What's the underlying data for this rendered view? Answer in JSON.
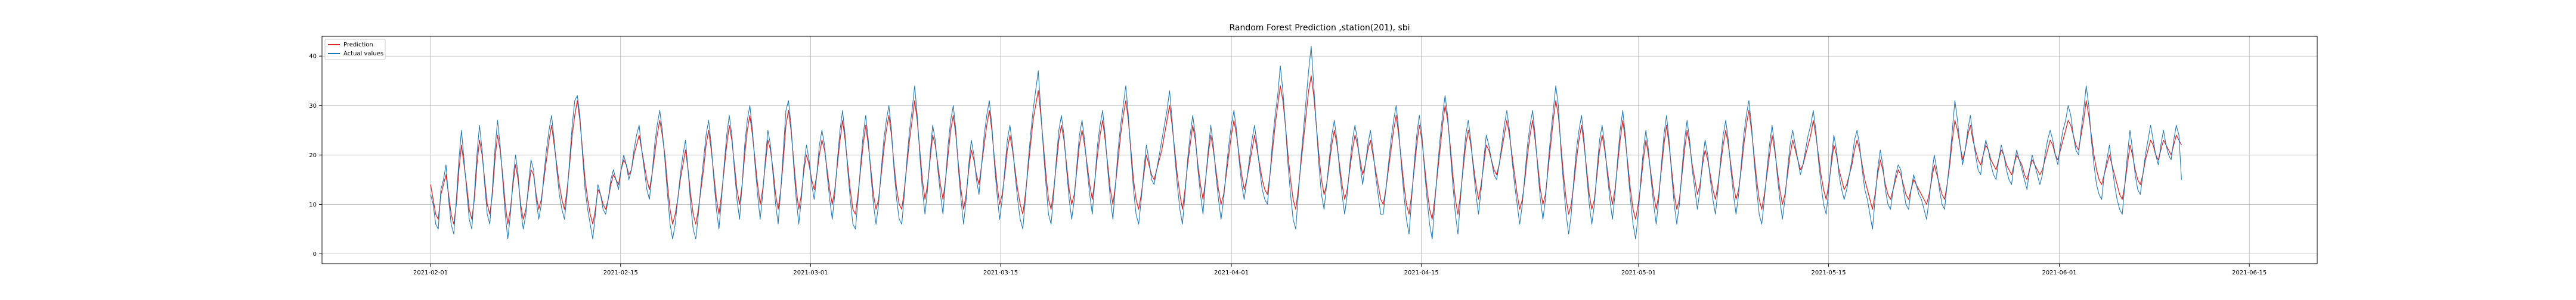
{
  "chart_data": {
    "type": "line",
    "title": "Random Forest Prediction ,station(201), sbi",
    "xlabel": "",
    "ylabel": "",
    "x_range": [
      "2021-01-24",
      "2021-06-20"
    ],
    "ylim": [
      -2,
      44
    ],
    "x_ticks": [
      "2021-02-01",
      "2021-02-15",
      "2021-03-01",
      "2021-03-15",
      "2021-04-01",
      "2021-04-15",
      "2021-05-01",
      "2021-05-15",
      "2021-06-01",
      "2021-06-15"
    ],
    "y_ticks": [
      0,
      10,
      20,
      30,
      40
    ],
    "grid": true,
    "legend_position": "top-left",
    "series_start": "2021-02-01",
    "series_end": "2021-06-10",
    "series": [
      {
        "name": "Prediction",
        "color": "#d62728",
        "sampling": "4h",
        "values": [
          14,
          11,
          8,
          7,
          12,
          14,
          16,
          12,
          8,
          6,
          10,
          17,
          22,
          18,
          14,
          9,
          7,
          11,
          18,
          23,
          20,
          15,
          10,
          8,
          12,
          19,
          24,
          21,
          16,
          10,
          6,
          9,
          14,
          18,
          15,
          10,
          7,
          9,
          13,
          17,
          16,
          12,
          9,
          11,
          15,
          19,
          23,
          26,
          22,
          18,
          14,
          11,
          9,
          13,
          18,
          24,
          28,
          31,
          27,
          21,
          15,
          11,
          8,
          6,
          9,
          13,
          12,
          10,
          9,
          11,
          14,
          16,
          15,
          14,
          17,
          19,
          18,
          16,
          17,
          20,
          22,
          24,
          21,
          18,
          15,
          13,
          16,
          20,
          24,
          27,
          24,
          20,
          14,
          9,
          6,
          8,
          11,
          15,
          18,
          21,
          17,
          12,
          8,
          6,
          9,
          13,
          17,
          22,
          25,
          21,
          16,
          11,
          8,
          12,
          17,
          22,
          26,
          23,
          18,
          13,
          10,
          14,
          20,
          25,
          28,
          24,
          19,
          14,
          10,
          13,
          18,
          23,
          21,
          17,
          12,
          9,
          13,
          19,
          26,
          29,
          25,
          19,
          13,
          9,
          12,
          17,
          20,
          18,
          15,
          13,
          16,
          20,
          23,
          21,
          17,
          13,
          10,
          13,
          18,
          23,
          27,
          23,
          18,
          13,
          9,
          8,
          12,
          17,
          22,
          26,
          22,
          17,
          12,
          9,
          11,
          16,
          21,
          25,
          28,
          24,
          18,
          13,
          10,
          9,
          13,
          18,
          23,
          27,
          31,
          27,
          21,
          15,
          11,
          14,
          19,
          24,
          22,
          18,
          14,
          11,
          15,
          20,
          25,
          28,
          24,
          18,
          13,
          9,
          12,
          17,
          21,
          19,
          16,
          14,
          18,
          22,
          26,
          29,
          25,
          19,
          14,
          10,
          12,
          16,
          21,
          24,
          21,
          17,
          13,
          10,
          8,
          12,
          17,
          22,
          27,
          30,
          33,
          28,
          22,
          16,
          11,
          9,
          13,
          18,
          23,
          26,
          23,
          18,
          13,
          10,
          12,
          17,
          22,
          25,
          22,
          18,
          14,
          11,
          15,
          20,
          24,
          27,
          23,
          18,
          13,
          10,
          14,
          19,
          24,
          28,
          31,
          27,
          21,
          15,
          11,
          9,
          12,
          16,
          20,
          18,
          16,
          15,
          17,
          19,
          21,
          24,
          27,
          30,
          26,
          21,
          16,
          12,
          9,
          13,
          18,
          22,
          26,
          23,
          18,
          14,
          11,
          15,
          20,
          24,
          21,
          17,
          13,
          10,
          12,
          16,
          20,
          24,
          27,
          24,
          20,
          16,
          13,
          15,
          18,
          21,
          24,
          21,
          18,
          15,
          13,
          12,
          16,
          21,
          26,
          30,
          34,
          31,
          26,
          20,
          15,
          11,
          9,
          13,
          18,
          23,
          28,
          33,
          36,
          32,
          26,
          20,
          15,
          12,
          14,
          18,
          22,
          25,
          22,
          18,
          14,
          11,
          13,
          17,
          21,
          24,
          22,
          19,
          16,
          18,
          21,
          23,
          20,
          17,
          14,
          11,
          10,
          13,
          17,
          21,
          25,
          28,
          24,
          19,
          14,
          10,
          8,
          12,
          17,
          22,
          26,
          23,
          18,
          13,
          9,
          7,
          11,
          16,
          21,
          26,
          30,
          27,
          22,
          16,
          11,
          8,
          12,
          17,
          22,
          25,
          22,
          18,
          14,
          11,
          14,
          18,
          22,
          21,
          19,
          17,
          16,
          18,
          21,
          24,
          27,
          24,
          20,
          16,
          12,
          9,
          11,
          15,
          20,
          24,
          27,
          23,
          18,
          13,
          10,
          12,
          17,
          22,
          27,
          31,
          28,
          22,
          16,
          11,
          8,
          10,
          14,
          19,
          23,
          26,
          22,
          17,
          12,
          9,
          11,
          16,
          21,
          24,
          21,
          17,
          13,
          10,
          13,
          18,
          23,
          27,
          23,
          18,
          13,
          9,
          7,
          10,
          14,
          19,
          23,
          20,
          16,
          12,
          9,
          12,
          17,
          22,
          26,
          22,
          17,
          12,
          9,
          11,
          16,
          21,
          25,
          22,
          18,
          15,
          12,
          14,
          18,
          21,
          19,
          16,
          13,
          11,
          14,
          18,
          22,
          25,
          22,
          18,
          14,
          11,
          13,
          17,
          22,
          26,
          29,
          25,
          20,
          15,
          11,
          9,
          12,
          16,
          20,
          24,
          21,
          17,
          13,
          10,
          12,
          16,
          20,
          23,
          21,
          19,
          17,
          18,
          20,
          22,
          24,
          27,
          24,
          20,
          16,
          13,
          11,
          14,
          18,
          22,
          20,
          17,
          15,
          13,
          14,
          16,
          18,
          21,
          23,
          21,
          18,
          15,
          13,
          11,
          9,
          12,
          16,
          19,
          17,
          14,
          12,
          11,
          13,
          15,
          17,
          16,
          14,
          12,
          11,
          13,
          15,
          14,
          13,
          12,
          11,
          10,
          12,
          15,
          18,
          16,
          14,
          12,
          11,
          14,
          18,
          23,
          27,
          25,
          22,
          19,
          21,
          24,
          26,
          23,
          21,
          19,
          18,
          20,
          22,
          21,
          19,
          18,
          17,
          19,
          21,
          20,
          18,
          17,
          16,
          18,
          20,
          19,
          18,
          16,
          15,
          17,
          19,
          18,
          17,
          16,
          17,
          19,
          21,
          23,
          22,
          20,
          19,
          21,
          23,
          25,
          27,
          26,
          24,
          22,
          21,
          24,
          27,
          31,
          28,
          24,
          20,
          17,
          15,
          14,
          16,
          18,
          20,
          18,
          16,
          14,
          12,
          11,
          14,
          18,
          22,
          20,
          17,
          15,
          14,
          16,
          19,
          21,
          23,
          22,
          20,
          19,
          21,
          23,
          22,
          21,
          20,
          22,
          24,
          23,
          22
        ]
      },
      {
        "name": "Actual values",
        "color": "#1f77b4",
        "sampling": "4h",
        "values": [
          12,
          10,
          6,
          5,
          13,
          15,
          18,
          11,
          6,
          4,
          11,
          19,
          25,
          19,
          13,
          7,
          5,
          12,
          20,
          26,
          21,
          14,
          8,
          6,
          13,
          21,
          27,
          22,
          15,
          8,
          3,
          8,
          15,
          20,
          16,
          9,
          5,
          8,
          14,
          19,
          17,
          11,
          7,
          10,
          16,
          21,
          25,
          28,
          23,
          17,
          12,
          9,
          7,
          12,
          19,
          26,
          31,
          32,
          28,
          20,
          13,
          9,
          6,
          3,
          8,
          14,
          12,
          9,
          8,
          11,
          15,
          17,
          15,
          13,
          17,
          20,
          18,
          15,
          17,
          21,
          24,
          26,
          21,
          17,
          13,
          11,
          16,
          22,
          26,
          29,
          25,
          19,
          12,
          6,
          3,
          6,
          11,
          16,
          20,
          23,
          17,
          10,
          5,
          3,
          8,
          14,
          19,
          24,
          27,
          22,
          15,
          9,
          5,
          11,
          18,
          24,
          28,
          24,
          17,
          11,
          7,
          14,
          22,
          27,
          30,
          25,
          18,
          12,
          7,
          12,
          19,
          25,
          22,
          16,
          10,
          6,
          13,
          21,
          29,
          31,
          26,
          18,
          11,
          6,
          11,
          18,
          22,
          19,
          14,
          11,
          16,
          22,
          25,
          22,
          16,
          11,
          7,
          12,
          19,
          25,
          29,
          24,
          17,
          11,
          6,
          5,
          11,
          18,
          24,
          28,
          23,
          16,
          10,
          6,
          10,
          17,
          23,
          27,
          30,
          25,
          17,
          11,
          7,
          6,
          12,
          19,
          25,
          29,
          34,
          28,
          20,
          13,
          8,
          13,
          20,
          26,
          23,
          17,
          12,
          8,
          15,
          22,
          27,
          30,
          25,
          17,
          11,
          6,
          11,
          18,
          23,
          20,
          15,
          12,
          18,
          24,
          28,
          31,
          26,
          18,
          12,
          7,
          11,
          17,
          23,
          26,
          22,
          16,
          11,
          7,
          5,
          11,
          18,
          24,
          29,
          33,
          37,
          29,
          21,
          14,
          8,
          6,
          12,
          19,
          25,
          28,
          24,
          17,
          11,
          7,
          11,
          18,
          24,
          27,
          23,
          17,
          12,
          8,
          15,
          22,
          26,
          29,
          24,
          17,
          11,
          7,
          14,
          21,
          26,
          30,
          34,
          28,
          20,
          13,
          8,
          6,
          11,
          17,
          22,
          19,
          15,
          14,
          17,
          20,
          23,
          26,
          29,
          33,
          27,
          20,
          14,
          9,
          6,
          12,
          19,
          24,
          28,
          24,
          17,
          12,
          8,
          15,
          21,
          26,
          22,
          16,
          11,
          7,
          11,
          17,
          22,
          26,
          29,
          25,
          19,
          14,
          11,
          15,
          19,
          23,
          26,
          22,
          17,
          13,
          11,
          10,
          16,
          23,
          28,
          32,
          38,
          33,
          26,
          18,
          12,
          7,
          5,
          12,
          19,
          25,
          31,
          37,
          42,
          34,
          26,
          18,
          12,
          9,
          14,
          19,
          24,
          27,
          23,
          17,
          12,
          8,
          12,
          18,
          23,
          26,
          23,
          18,
          14,
          18,
          22,
          25,
          21,
          16,
          12,
          8,
          8,
          13,
          18,
          23,
          27,
          30,
          25,
          18,
          12,
          7,
          4,
          11,
          18,
          24,
          28,
          24,
          17,
          11,
          6,
          3,
          10,
          17,
          23,
          28,
          32,
          28,
          21,
          14,
          8,
          4,
          11,
          18,
          24,
          27,
          23,
          17,
          12,
          8,
          13,
          19,
          24,
          22,
          19,
          16,
          15,
          18,
          22,
          26,
          29,
          25,
          19,
          14,
          10,
          6,
          10,
          16,
          22,
          26,
          29,
          24,
          17,
          11,
          7,
          11,
          18,
          24,
          29,
          34,
          30,
          21,
          14,
          8,
          4,
          8,
          15,
          21,
          25,
          28,
          23,
          16,
          10,
          6,
          10,
          17,
          23,
          26,
          22,
          16,
          11,
          7,
          12,
          19,
          25,
          29,
          24,
          17,
          11,
          6,
          3,
          8,
          15,
          21,
          25,
          21,
          15,
          10,
          6,
          11,
          18,
          24,
          28,
          23,
          16,
          10,
          6,
          10,
          17,
          23,
          27,
          23,
          17,
          13,
          9,
          13,
          19,
          23,
          20,
          15,
          11,
          8,
          13,
          19,
          24,
          27,
          23,
          17,
          12,
          8,
          12,
          18,
          24,
          28,
          31,
          26,
          19,
          13,
          8,
          6,
          11,
          17,
          22,
          26,
          22,
          16,
          11,
          7,
          11,
          17,
          22,
          25,
          22,
          19,
          16,
          18,
          21,
          24,
          26,
          29,
          25,
          19,
          14,
          10,
          8,
          13,
          19,
          24,
          21,
          16,
          13,
          11,
          13,
          16,
          19,
          23,
          25,
          22,
          17,
          13,
          11,
          8,
          5,
          11,
          17,
          21,
          18,
          13,
          10,
          9,
          13,
          16,
          18,
          17,
          13,
          10,
          9,
          13,
          16,
          14,
          12,
          11,
          9,
          7,
          11,
          16,
          20,
          17,
          13,
          10,
          9,
          14,
          19,
          25,
          31,
          27,
          22,
          18,
          21,
          25,
          28,
          24,
          20,
          17,
          16,
          20,
          23,
          21,
          18,
          16,
          15,
          19,
          22,
          20,
          17,
          15,
          14,
          18,
          21,
          19,
          17,
          15,
          13,
          17,
          20,
          18,
          16,
          14,
          16,
          20,
          23,
          25,
          23,
          20,
          18,
          22,
          25,
          27,
          30,
          28,
          24,
          21,
          20,
          25,
          29,
          34,
          30,
          23,
          18,
          14,
          12,
          11,
          16,
          19,
          22,
          18,
          14,
          11,
          9,
          8,
          14,
          20,
          25,
          21,
          16,
          13,
          12,
          16,
          20,
          23,
          26,
          23,
          20,
          18,
          22,
          25,
          22,
          20,
          19,
          23,
          26,
          24,
          15
        ]
      }
    ]
  }
}
